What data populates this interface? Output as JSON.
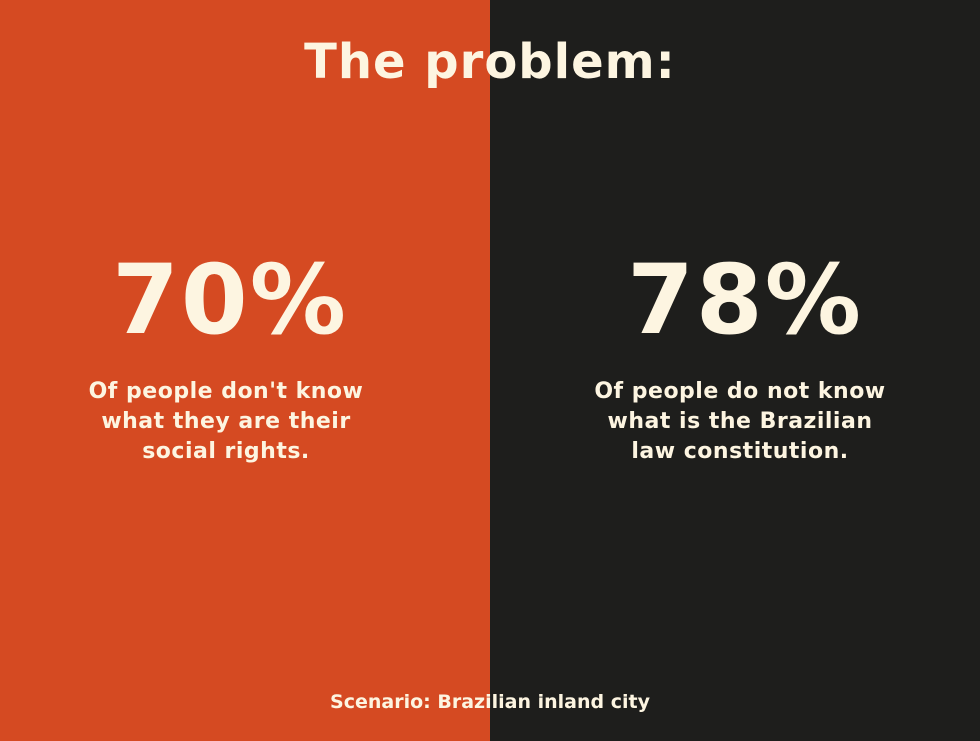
{
  "title": "The problem:",
  "colors": {
    "left_panel": "#d54a22",
    "right_panel": "#1e1e1c",
    "text": "#fdf5e1"
  },
  "stats": [
    {
      "value": "70%",
      "lines": [
        "Of people don't know",
        "what they are their",
        "social rights."
      ]
    },
    {
      "value": "78%",
      "lines": [
        "Of people do not know",
        "what is the Brazilian",
        "law constitution."
      ]
    }
  ],
  "footer": "Scenario: Brazilian inland city"
}
